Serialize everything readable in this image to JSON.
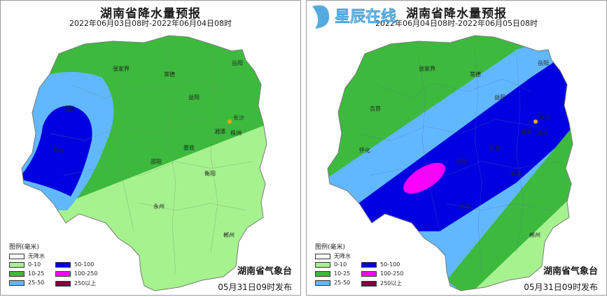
{
  "maps": [
    {
      "title": "湖南省降水量预报",
      "subtitle": "2022年06月03日08时-2022年06月04日08时",
      "bureau": "湖南省气象台",
      "issued": "05月31日09时发布",
      "cities": [
        "张家界",
        "常德",
        "岳阳",
        "吉首",
        "益阳",
        "长沙",
        "湘潭",
        "株洲",
        "怀化",
        "娄底",
        "邵阳",
        "衡阳",
        "永州",
        "郴州"
      ]
    },
    {
      "title": "湖南省降水量预报",
      "subtitle": "2022年06月04日08时-2022年06月05日08时",
      "bureau": "湖南省气象台",
      "issued": "05月31日09时发布",
      "cities": [
        "张家界",
        "常德",
        "岳阳",
        "吉首",
        "益阳",
        "长沙",
        "湘潭",
        "株洲",
        "怀化",
        "娄底",
        "邵阳",
        "衡阳",
        "永州",
        "郴州"
      ],
      "watermark": "星辰在线"
    }
  ],
  "legend": {
    "title": "图例(毫米)",
    "items": [
      {
        "label": "无降水",
        "color": "#ffffff"
      },
      {
        "label": "0-10",
        "color": "#a6f28f"
      },
      {
        "label": "10-25",
        "color": "#3dba3d"
      },
      {
        "label": "25-50",
        "color": "#61b8ff"
      },
      {
        "label": "50-100",
        "color": "#0000e1"
      },
      {
        "label": "100-250",
        "color": "#fa00fa"
      },
      {
        "label": "250以上",
        "color": "#800040"
      }
    ]
  }
}
